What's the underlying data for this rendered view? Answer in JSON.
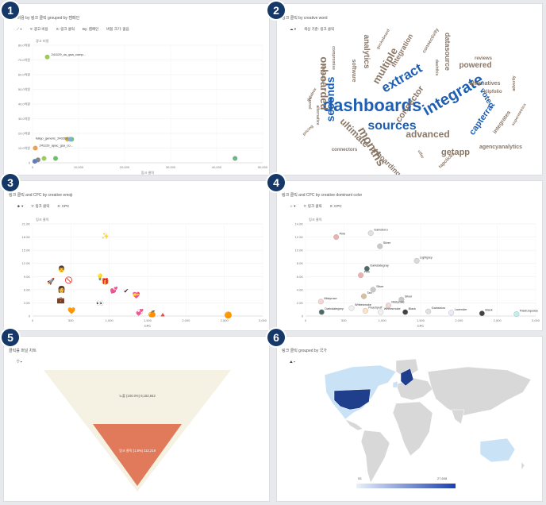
{
  "badges": [
    "1",
    "2",
    "3",
    "4",
    "5",
    "6"
  ],
  "p1": {
    "title": "광고 비용 by 링크 클릭 grouped by 캠페인",
    "toolbar": [
      "Y: 광고 비용",
      "X: 링크 클릭",
      "By: 캠페인",
      "버블 크기: 없음"
    ],
    "chart_data": {
      "type": "scatter",
      "ylabel": "광고 비용",
      "xlabel": "링크 클릭",
      "y_ticks": [
        "0",
        "10.0억원",
        "20.0억원",
        "30.0억원",
        "40.0억원",
        "50.0억원",
        "60.0억원",
        "70.0억원",
        "80.0억원"
      ],
      "x_ticks": [
        "0",
        "10,000",
        "20,000",
        "30,000",
        "40,000",
        "50,000"
      ],
      "xlim": [
        0,
        50000
      ],
      "ylim": [
        0,
        80
      ],
      "points": [
        {
          "x": 3200,
          "y": 72,
          "color": "#9acd50",
          "label": "241129_us_gsa_comp..."
        },
        {
          "x": 8500,
          "y": 16,
          "color": "#7bbf6a",
          "label": ""
        },
        {
          "x": 7600,
          "y": 16,
          "color": "#e4b040",
          "label": ""
        },
        {
          "x": 8200,
          "y": 16,
          "color": "#7ab2d8",
          "label": ""
        },
        {
          "x": 600,
          "y": 10,
          "color": "#e8a060",
          "label": "241129_apac_gsa_co..."
        },
        {
          "x": 1200,
          "y": 2,
          "color": "#888888",
          "label": ""
        },
        {
          "x": 500,
          "y": 1,
          "color": "#5b7fbf",
          "label": ""
        },
        {
          "x": 2500,
          "y": 3,
          "color": "#9acd50",
          "label": ""
        },
        {
          "x": 5000,
          "y": 3,
          "color": "#6bbf6a",
          "label": ""
        },
        {
          "x": 44000,
          "y": 3,
          "color": "#6fb38b",
          "label": ""
        }
      ],
      "annotations": [
        "fullpp_generic_240260"
      ]
    }
  },
  "p2": {
    "title": "링크 클릭 by creative word",
    "toolbar": [
      "색상 기준: 링크 클릭"
    ],
    "words": [
      {
        "t": "dashboards",
        "c": "#1e5fb3",
        "s": 22
      },
      {
        "t": "integrate",
        "c": "#1e5fb3",
        "s": 20
      },
      {
        "t": "sources",
        "c": "#1e5fb3",
        "s": 16
      },
      {
        "t": "extract",
        "c": "#1e5fb3",
        "s": 17
      },
      {
        "t": "months",
        "c": "#8b7766",
        "s": 15
      },
      {
        "t": "seconds",
        "c": "#1e5fb3",
        "s": 14
      },
      {
        "t": "onboarded",
        "c": "#8b7766",
        "s": 13
      },
      {
        "t": "multiple",
        "c": "#8b7766",
        "s": 13
      },
      {
        "t": "ultimate",
        "c": "#8b7766",
        "s": 12
      },
      {
        "t": "advanced",
        "c": "#8b7766",
        "s": 12
      },
      {
        "t": "connector",
        "c": "#8b7766",
        "s": 11
      },
      {
        "t": "getapp",
        "c": "#8b7766",
        "s": 11
      },
      {
        "t": "capterra",
        "c": "#1e5fb3",
        "s": 11
      },
      {
        "t": "powered",
        "c": "#8b7766",
        "s": 10
      },
      {
        "t": "voted",
        "c": "#1e5fb3",
        "s": 10
      },
      {
        "t": "analytics",
        "c": "#8b7766",
        "s": 10
      },
      {
        "t": "integration",
        "c": "#8b7766",
        "s": 9
      },
      {
        "t": "onboarding",
        "c": "#8b7766",
        "s": 9
      },
      {
        "t": "datasource",
        "c": "#8b7766",
        "s": 9
      },
      {
        "t": "agencyanalytics",
        "c": "#8b7766",
        "s": 7
      },
      {
        "t": "alternatives",
        "c": "#8b7766",
        "s": 7
      },
      {
        "t": "integrates",
        "c": "#8b7766",
        "s": 7
      },
      {
        "t": "software",
        "c": "#8b7766",
        "s": 7
      },
      {
        "t": "connectors",
        "c": "#8b7766",
        "s": 6
      },
      {
        "t": "tapclicks",
        "c": "#8b7766",
        "s": 6
      },
      {
        "t": "klipfolio",
        "c": "#8b7766",
        "s": 6
      },
      {
        "t": "connectivity",
        "c": "#8b7766",
        "s": 6
      },
      {
        "t": "reviews",
        "c": "#8b7766",
        "s": 6
      },
      {
        "t": "compromise",
        "c": "#8b7766",
        "s": 5
      },
      {
        "t": "pricing",
        "c": "#8b7766",
        "s": 5
      },
      {
        "t": "funnel",
        "c": "#8b7766",
        "s": 5
      },
      {
        "t": "alternative",
        "c": "#8b7766",
        "s": 5
      },
      {
        "t": "offer",
        "c": "#8b7766",
        "s": 5
      },
      {
        "t": "adverity",
        "c": "#8b7766",
        "s": 5
      },
      {
        "t": "supermetrics",
        "c": "#8b7766",
        "s": 5
      },
      {
        "t": "geckoboard",
        "c": "#8b7766",
        "s": 5
      },
      {
        "t": "dashthis",
        "c": "#8b7766",
        "s": 5
      },
      {
        "t": "improvado",
        "c": "#8b7766",
        "s": 5
      },
      {
        "t": "databox",
        "c": "#8b7766",
        "s": 5
      }
    ]
  },
  "p3": {
    "title": "링크 클릭 and CPC by creative emoji",
    "toolbar": [
      "Y: 링크 클릭",
      "X: CPC"
    ],
    "chart_data": {
      "type": "scatter",
      "ylabel": "링크 클릭",
      "xlabel": "CPC",
      "y_ticks": [
        "0",
        "3.0K",
        "6.0K",
        "9.0K",
        "12.0K",
        "15.0K",
        "18.0K",
        "21.0K"
      ],
      "x_ticks": [
        "0",
        "500",
        "1,000",
        "1,500",
        "2,000",
        "2,500",
        "3,000"
      ],
      "xlim": [
        0,
        3000
      ],
      "ylim": [
        0,
        21
      ],
      "points": [
        {
          "x": 950,
          "y": 18.3,
          "g": "✨"
        },
        {
          "x": 380,
          "y": 10.8,
          "g": "👨"
        },
        {
          "x": 880,
          "y": 9.0,
          "g": "💡"
        },
        {
          "x": 240,
          "y": 8.0,
          "g": "🚀"
        },
        {
          "x": 470,
          "y": 8.2,
          "g": "🚫"
        },
        {
          "x": 950,
          "y": 8.0,
          "g": "🎁"
        },
        {
          "x": 380,
          "y": 6.2,
          "g": "👩"
        },
        {
          "x": 1060,
          "y": 6.0,
          "g": "💕"
        },
        {
          "x": 1220,
          "y": 5.8,
          "g": "✔"
        },
        {
          "x": 1350,
          "y": 4.8,
          "g": "💝"
        },
        {
          "x": 370,
          "y": 3.7,
          "g": "💼"
        },
        {
          "x": 880,
          "y": 3.0,
          "g": "👀"
        },
        {
          "x": 510,
          "y": 1.3,
          "g": "🧡"
        },
        {
          "x": 1400,
          "y": 0.9,
          "g": "💞"
        },
        {
          "x": 1560,
          "y": 0.5,
          "g": "🍊"
        },
        {
          "x": 1700,
          "y": 0.4,
          "g": "🔺"
        },
        {
          "x": 2550,
          "y": 0.3,
          "g": "🟠"
        }
      ]
    }
  },
  "p4": {
    "title": "링크 클릭 and CPC by creative dominant color",
    "toolbar": [
      "Y: 링크 클릭",
      "X: CPC"
    ],
    "chart_data": {
      "type": "scatter",
      "ylabel": "링크 클릭",
      "xlabel": "CPC",
      "y_ticks": [
        "0",
        "2.0K",
        "4.0K",
        "6.0K",
        "8.0K",
        "10.0K",
        "12.0K",
        "14.0K"
      ],
      "x_ticks": [
        "0",
        "500",
        "1,000",
        "1,500",
        "2,000",
        "2,500",
        "3,000"
      ],
      "xlim": [
        0,
        3000
      ],
      "ylim": [
        0,
        14
      ],
      "points": [
        {
          "x": 850,
          "y": 12.6,
          "label": "Gainsboro",
          "c": "#dcdcdc"
        },
        {
          "x": 400,
          "y": 12.0,
          "label": "Pink",
          "c": "#e8a5a5"
        },
        {
          "x": 970,
          "y": 10.6,
          "label": "Silver",
          "c": "#c0c0c0"
        },
        {
          "x": 1450,
          "y": 8.4,
          "label": "Lightgrey",
          "c": "#d3d3d3"
        },
        {
          "x": 800,
          "y": 7.2,
          "label": "Darkslategray",
          "c": "#2f4f4f"
        },
        {
          "x": 720,
          "y": 6.2,
          "label": "Pink",
          "c": "#e8a5a5"
        },
        {
          "x": 880,
          "y": 4.0,
          "label": "Silver",
          "c": "#c0c0c0"
        },
        {
          "x": 760,
          "y": 3.0,
          "label": "Tan",
          "c": "#d2b48c"
        },
        {
          "x": 1250,
          "y": 2.5,
          "label": "Silver",
          "c": "#c0c0c0"
        },
        {
          "x": 200,
          "y": 2.2,
          "label": "Mistyrose",
          "c": "#f5cece"
        },
        {
          "x": 1080,
          "y": 1.6,
          "label": "Mistyrose",
          "c": "#f5cece"
        },
        {
          "x": 600,
          "y": 1.2,
          "label": "Whitesmoke",
          "c": "#eeeeee"
        },
        {
          "x": 210,
          "y": 0.6,
          "label": "Darkslategrey",
          "c": "#2f4f4f"
        },
        {
          "x": 780,
          "y": 0.8,
          "label": "Peachpuff",
          "c": "#ffdab9"
        },
        {
          "x": 980,
          "y": 0.6,
          "label": "Whitesmoke",
          "c": "#eeeeee"
        },
        {
          "x": 1300,
          "y": 0.6,
          "label": "Black",
          "c": "#222222"
        },
        {
          "x": 1600,
          "y": 0.7,
          "label": "Gainsboro",
          "c": "#dcdcdc"
        },
        {
          "x": 1900,
          "y": 0.5,
          "label": "Lavender",
          "c": "#e6e6fa"
        },
        {
          "x": 2300,
          "y": 0.4,
          "label": "Black",
          "c": "#222222"
        },
        {
          "x": 2750,
          "y": 0.3,
          "label": "Paleturquoise",
          "c": "#afeeee"
        }
      ]
    }
  },
  "p5": {
    "title": "클릭률 퍼널 차트",
    "toolbar": [],
    "chart_data": {
      "type": "funnel",
      "stages": [
        {
          "label": "노출 (100.0%) 6,182,842",
          "value": 100
        },
        {
          "label": "링크 클릭 (1.8%) 112,219",
          "value": 1.8
        }
      ]
    }
  },
  "p6": {
    "title": "링크 클릭 grouped by 국가",
    "toolbar": [],
    "legend": {
      "min": "53",
      "max": "27,608"
    }
  }
}
